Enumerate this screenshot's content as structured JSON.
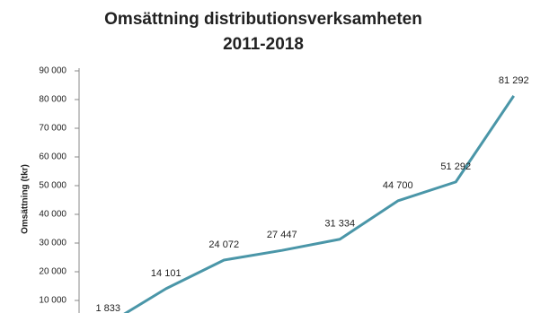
{
  "chart_data": {
    "type": "line",
    "title": [
      "Omsättning distributionsverksamheten",
      "2011-2018"
    ],
    "y_label": "Omsättning (tkr)",
    "categories": [
      null,
      null,
      null,
      null,
      null,
      null,
      null,
      null
    ],
    "series": [
      {
        "color": "#4a96a8",
        "values": [
          1833,
          14101,
          24072,
          27447,
          31334,
          44700,
          51292,
          81292
        ],
        "value_labels": [
          "1 833",
          "14 101",
          "24 072",
          "27 447",
          "31 334",
          "44 700",
          "51 292",
          "81 292"
        ]
      }
    ],
    "ylim": [
      0,
      90000
    ],
    "yticks": [
      {
        "value": 10000,
        "label": "10 000"
      },
      {
        "value": 20000,
        "label": "20 000"
      },
      {
        "value": 30000,
        "label": "30 000"
      },
      {
        "value": 40000,
        "label": "40 000"
      },
      {
        "value": 50000,
        "label": "50 000"
      },
      {
        "value": 60000,
        "label": "60 000"
      },
      {
        "value": 70000,
        "label": "70 000"
      },
      {
        "value": 80000,
        "label": "80 000"
      },
      {
        "value": 90000,
        "label": "90 000"
      }
    ],
    "grid": false
  }
}
